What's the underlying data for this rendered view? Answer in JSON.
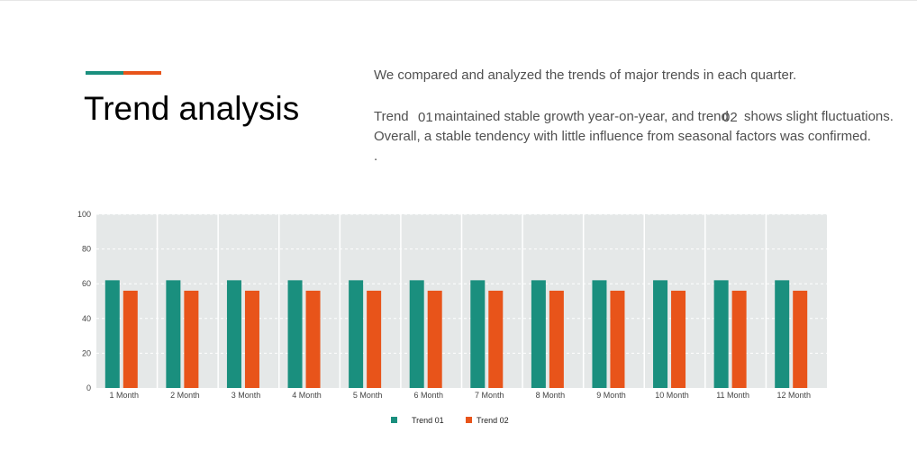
{
  "title": "Trend analysis",
  "description": {
    "line1": "We compared and analyzed the trends of major trends in each quarter.",
    "line2_a": "Trend",
    "line2_tag1": "01",
    "line2_b": "maintained stable growth year-on-year, and trend",
    "line2_tag2": "02",
    "line2_c": "shows slight fluctuations.",
    "line3": "Overall, a stable tendency with little influence from seasonal factors was confirmed.",
    "line4": "."
  },
  "colors": {
    "trend01": "#1a8f7e",
    "trend02": "#e8541a",
    "plot_bg": "#e5e8e8"
  },
  "chart_data": {
    "type": "bar",
    "categories": [
      "1 Month",
      "2 Month",
      "3 Month",
      "4 Month",
      "5 Month",
      "6 Month",
      "7 Month",
      "8 Month",
      "9 Month",
      "10 Month",
      "11 Month",
      "12 Month"
    ],
    "series": [
      {
        "name": "Trend 01",
        "values": [
          62,
          62,
          62,
          62,
          62,
          62,
          62,
          62,
          62,
          62,
          62,
          62
        ]
      },
      {
        "name": "Trend 02",
        "values": [
          56,
          56,
          56,
          56,
          56,
          56,
          56,
          56,
          56,
          56,
          56,
          56
        ]
      }
    ],
    "ylim": [
      0,
      100
    ],
    "yticks": [
      0,
      20,
      40,
      60,
      80,
      100
    ],
    "grid": true,
    "legend_position": "bottom"
  }
}
